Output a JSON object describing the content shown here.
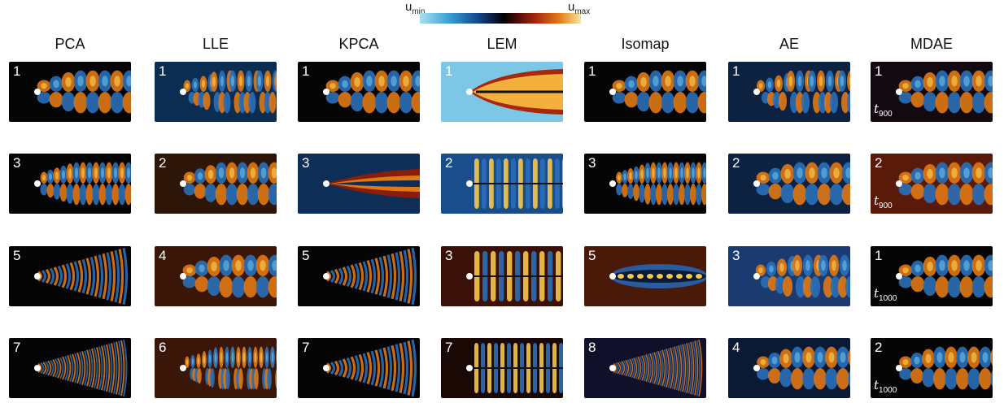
{
  "colorbar": {
    "min_base": "u",
    "min_sub": "min",
    "max_base": "u",
    "max_sub": "max"
  },
  "methods": [
    {
      "name": "PCA",
      "modes": [
        "1",
        "3",
        "5",
        "7"
      ]
    },
    {
      "name": "LLE",
      "modes": [
        "1",
        "2",
        "4",
        "6"
      ]
    },
    {
      "name": "KPCA",
      "modes": [
        "1",
        "3",
        "5",
        "7"
      ]
    },
    {
      "name": "LEM",
      "modes": [
        "1",
        "2",
        "3",
        "7"
      ]
    },
    {
      "name": "Isomap",
      "modes": [
        "1",
        "3",
        "5",
        "8"
      ]
    },
    {
      "name": "AE",
      "modes": [
        "1",
        "2",
        "3",
        "4"
      ]
    },
    {
      "name": "MDAE",
      "modes": [
        "1",
        "2",
        "1",
        "2"
      ],
      "time_labels": [
        {
          "base": "t",
          "sub": "900"
        },
        {
          "base": "t",
          "sub": "900"
        },
        {
          "base": "t",
          "sub": "1000"
        },
        {
          "base": "t",
          "sub": "1000"
        }
      ]
    }
  ]
}
